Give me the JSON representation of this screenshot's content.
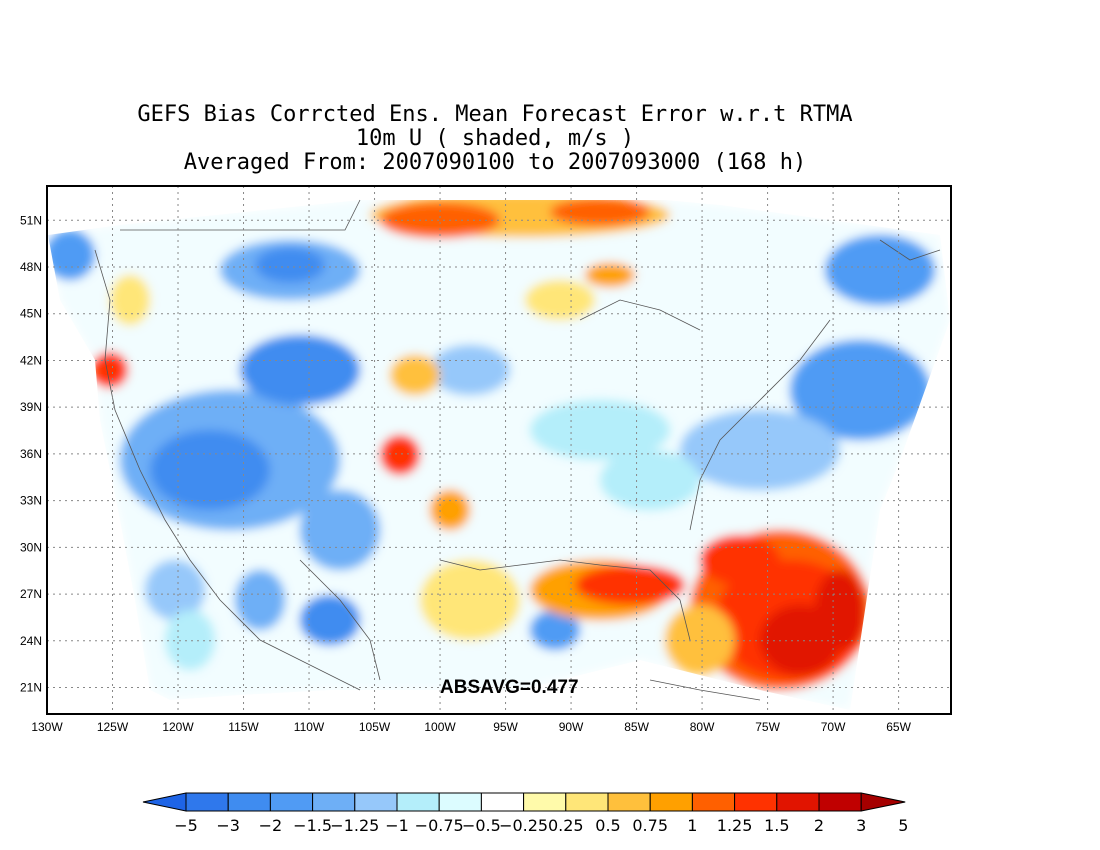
{
  "title": {
    "line1": "GEFS Bias Corrcted Ens. Mean Forecast Error w.r.t RTMA",
    "line2": "10m U ( shaded, m/s )",
    "line3": "Averaged From: 2007090100 to 2007093000 (168 h)"
  },
  "map": {
    "lon_labels": [
      "130W",
      "125W",
      "120W",
      "115W",
      "110W",
      "105W",
      "100W",
      "95W",
      "90W",
      "85W",
      "80W",
      "75W",
      "70W",
      "65W"
    ],
    "lat_labels": [
      "51N",
      "48N",
      "45N",
      "42N",
      "39N",
      "36N",
      "33N",
      "30N",
      "27N",
      "24N",
      "21N"
    ],
    "lon_range": [
      -130,
      -61
    ],
    "lat_range": [
      19.3,
      53.2
    ],
    "grid": "dotted",
    "stat_label": "ABSAVG=0.477"
  },
  "colorbar": {
    "labels": [
      "−5",
      "−3",
      "−2",
      "−1.5",
      "−1.25",
      "−1",
      "−0.75",
      "−0.5",
      "−0.25",
      "0.25",
      "0.5",
      "0.75",
      "1",
      "1.25",
      "1.5",
      "2",
      "3",
      "5"
    ],
    "colors": [
      "#1e64e6",
      "#2f78ec",
      "#3f8cf0",
      "#509bf4",
      "#6eaff6",
      "#96c8fa",
      "#b4eefa",
      "#dcfcff",
      "#ffffff",
      "#fffaaa",
      "#ffe678",
      "#ffc03c",
      "#ffa000",
      "#ff6000",
      "#ff3200",
      "#e11400",
      "#c00000",
      "#a50000"
    ]
  }
}
